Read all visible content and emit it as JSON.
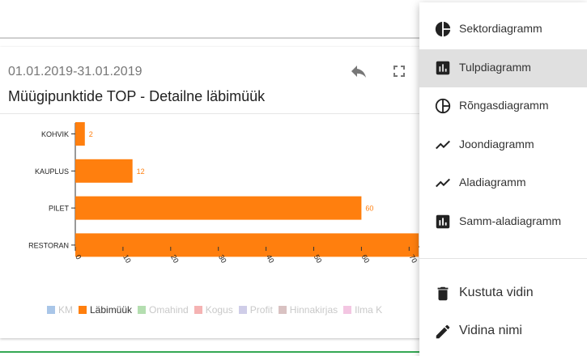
{
  "card": {
    "date_range": "01.01.2019-31.01.2019",
    "title": "Müügipunktide TOP - Detailne läbimüük",
    "icons": [
      "reply-icon",
      "fullscreen-icon"
    ]
  },
  "chart_data": {
    "type": "bar",
    "orientation": "horizontal",
    "categories": [
      "KOHVIK",
      "KAUPLUS",
      "PILET",
      "RESTORAN"
    ],
    "series": [
      {
        "name": "Läbimüük",
        "values": [
          2,
          12,
          60,
          72
        ],
        "color": "#ff7f0e"
      }
    ],
    "data_labels": [
      "2",
      "12",
      "60",
      ""
    ],
    "xticks": [
      "0",
      "10",
      "20",
      "30",
      "40",
      "50",
      "60",
      "70"
    ],
    "xlim": [
      0,
      72
    ],
    "grid": false
  },
  "legend": [
    {
      "label": "KM",
      "color": "#a9c6e8",
      "muted": true
    },
    {
      "label": "Läbimüük",
      "color": "#ff7f0e",
      "muted": false
    },
    {
      "label": "Omahind",
      "color": "#b4deb0",
      "muted": true
    },
    {
      "label": "Kogus",
      "color": "#f5b3b3",
      "muted": true
    },
    {
      "label": "Profit",
      "color": "#cfcde8",
      "muted": true
    },
    {
      "label": "Hinnakirjas",
      "color": "#d9c2c2",
      "muted": true
    },
    {
      "label": "Ilma K",
      "color": "#f3c6e2",
      "muted": true
    }
  ],
  "menu": {
    "items": [
      {
        "label": "Sektordiagramm",
        "icon": "pie-chart-icon"
      },
      {
        "label": "Tulpdiagramm",
        "icon": "bar-chart-icon",
        "active": true
      },
      {
        "label": "Rõngasdiagramm",
        "icon": "donut-chart-icon"
      },
      {
        "label": "Joondiagramm",
        "icon": "line-chart-icon"
      },
      {
        "label": "Aladiagramm",
        "icon": "area-chart-icon"
      },
      {
        "label": "Samm-aladiagramm",
        "icon": "step-area-chart-icon"
      }
    ],
    "actions": [
      {
        "label": "Kustuta vidin",
        "icon": "trash-icon"
      },
      {
        "label": "Vidina nimi",
        "icon": "pencil-icon"
      }
    ]
  },
  "colors": {
    "accent": "#ff7f0e",
    "active_bg": "#e0e0e0",
    "green_bar": "#34a853"
  }
}
